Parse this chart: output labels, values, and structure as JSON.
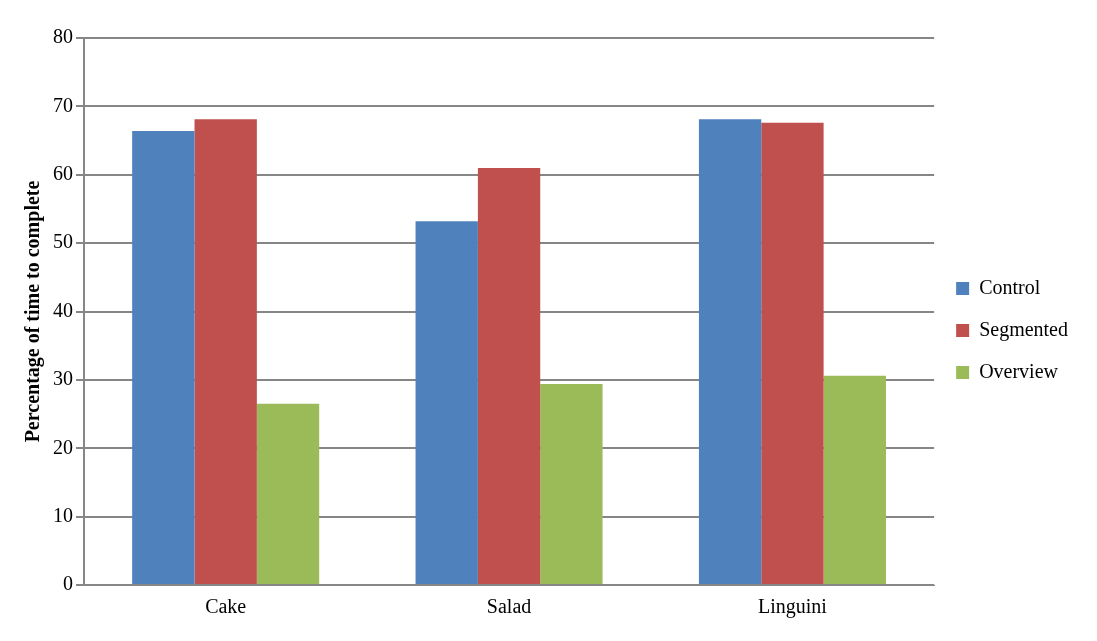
{
  "chart_data": {
    "type": "bar",
    "ylabel": "Percentage of time to complete",
    "categories": [
      "Cake",
      "Salad",
      "Linguini"
    ],
    "series": [
      {
        "name": "Control",
        "color": "#4f81bd",
        "values": [
          66.4,
          53.2,
          68.1
        ]
      },
      {
        "name": "Segmented",
        "color": "#c0504d",
        "values": [
          68.1,
          61.0,
          67.6
        ]
      },
      {
        "name": "Overview",
        "color": "#9bbb59",
        "values": [
          26.5,
          29.4,
          30.6
        ]
      }
    ],
    "ylim": [
      0,
      80
    ],
    "yticks": [
      0,
      10,
      20,
      30,
      40,
      50,
      60,
      70,
      80
    ],
    "grid": "y",
    "legend": "right"
  }
}
